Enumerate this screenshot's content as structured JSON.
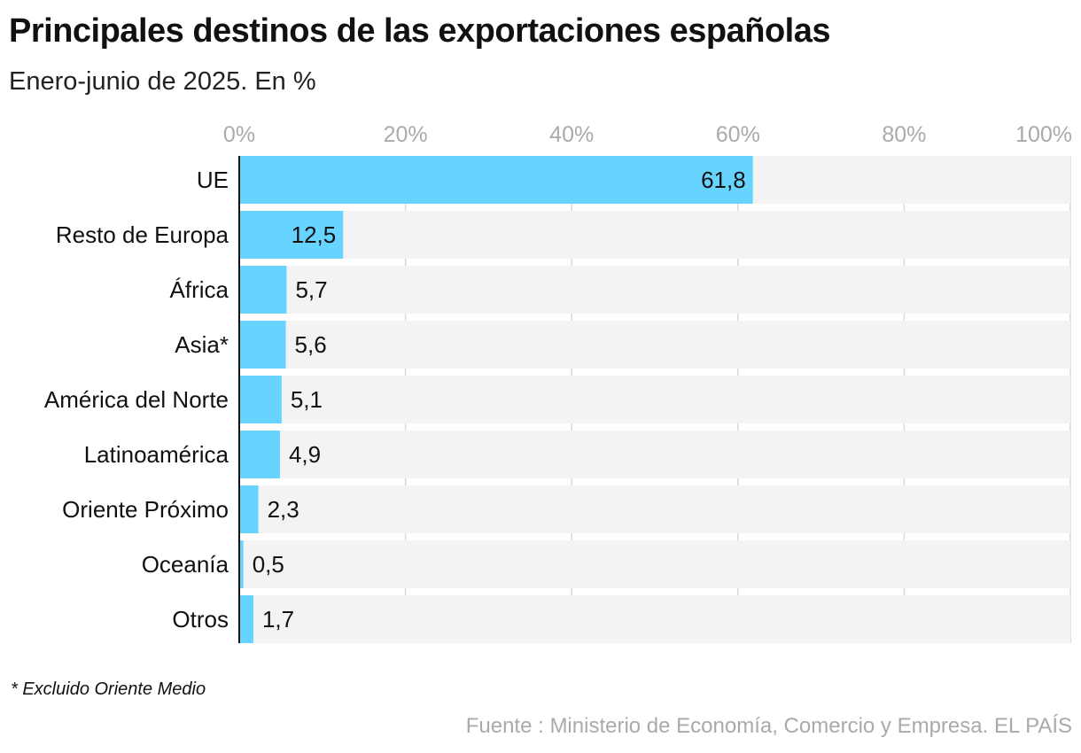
{
  "title": "Principales destinos de las exportaciones españolas",
  "subtitle": "Enero-junio de 2025. En %",
  "footnote": "* Excluido Oriente Medio",
  "source": "Fuente : Ministerio de Economía, Comercio y Empresa. EL PAÍS",
  "chart_data": {
    "type": "bar",
    "orientation": "horizontal",
    "categories": [
      "UE",
      "Resto de Europa",
      "África",
      "Asia*",
      "América del Norte",
      "Latinoamérica",
      "Oriente Próximo",
      "Oceanía",
      "Otros"
    ],
    "values": [
      61.8,
      12.5,
      5.7,
      5.6,
      5.1,
      4.9,
      2.3,
      0.5,
      1.7
    ],
    "value_labels": [
      "61,8",
      "12,5",
      "5,7",
      "5,6",
      "5,1",
      "4,9",
      "2,3",
      "0,5",
      "1,7"
    ],
    "xlim": [
      0,
      100
    ],
    "x_ticks": [
      0,
      20,
      40,
      60,
      80,
      100
    ],
    "x_tick_labels": [
      "0%",
      "20%",
      "40%",
      "60%",
      "80%",
      "100%"
    ],
    "grid": true,
    "colors": {
      "bar": "#66d4ff",
      "track": "#f3f3f3",
      "grid": "#d9d9d9",
      "tick": "#aaaaaa"
    }
  }
}
